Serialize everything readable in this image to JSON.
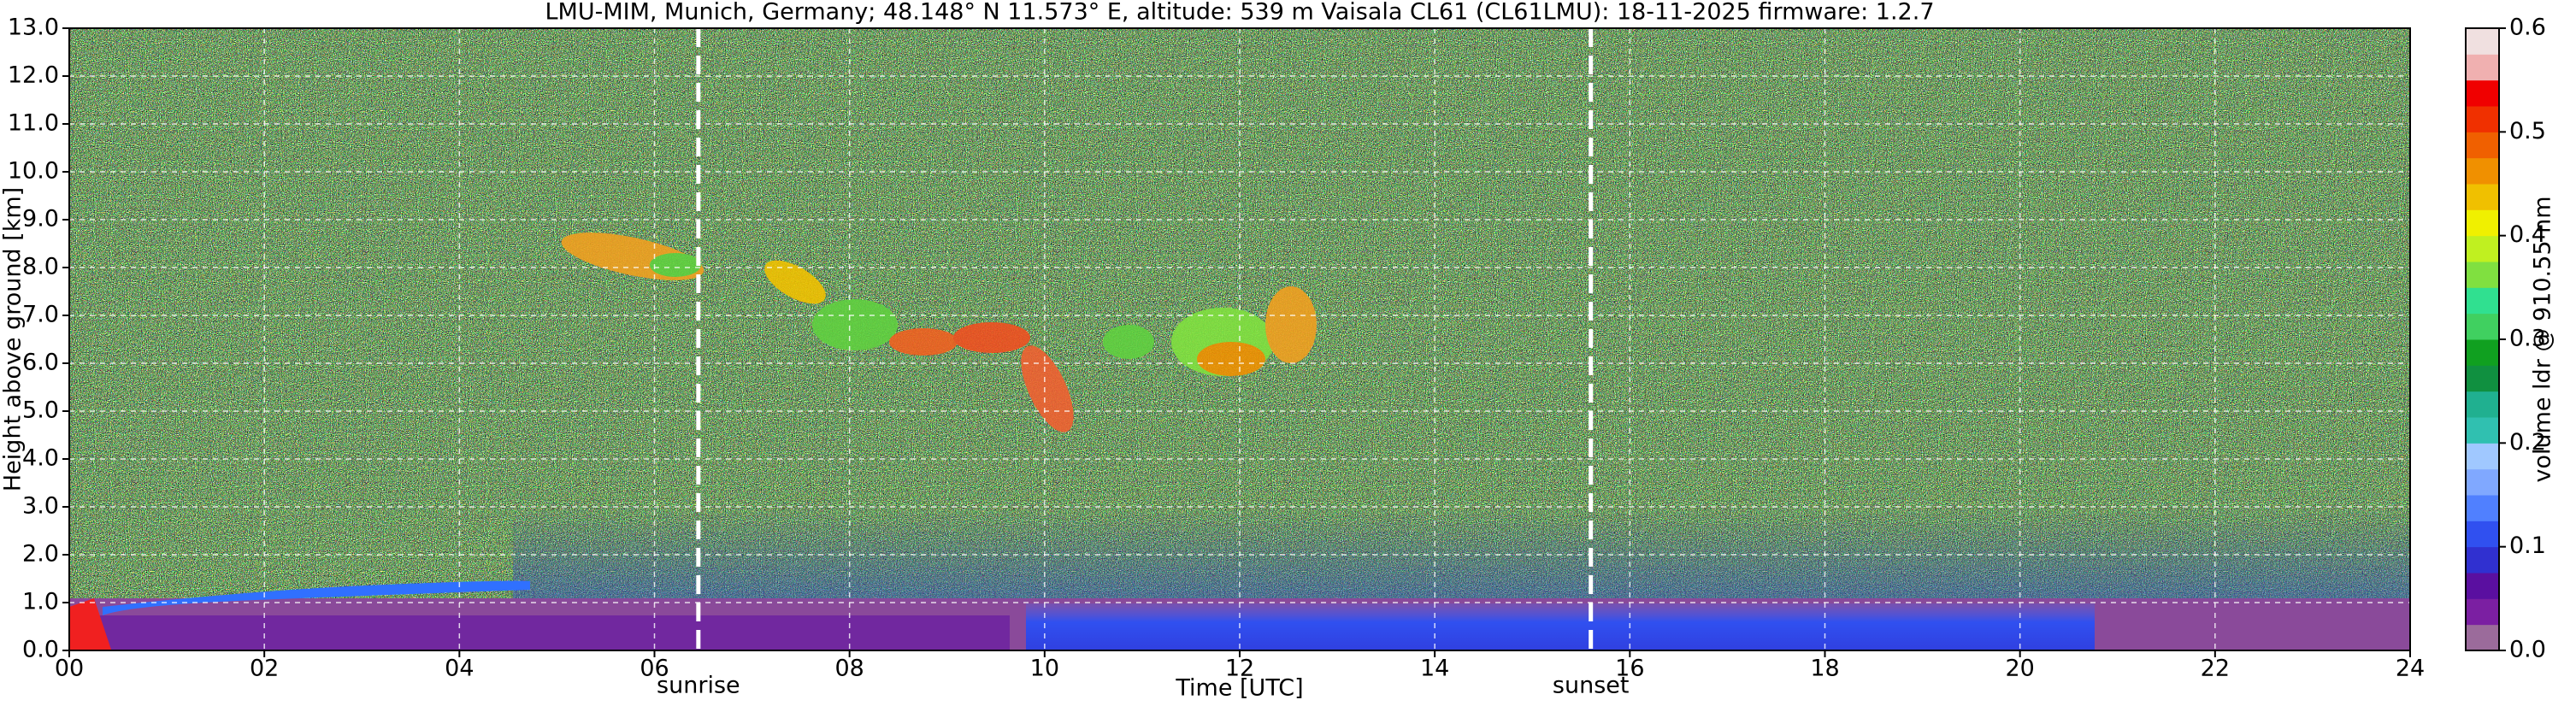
{
  "chart_data": {
    "type": "heatmap",
    "title": "LMU-MIM, Munich, Germany; 48.148° N 11.573° E, altitude: 539 m    Vaisala CL61 (CL61LMU): 18-11-2025    firmware: 1.2.7",
    "x_label": "Time [UTC]",
    "y_label": "Height above ground [km]",
    "xlim": [
      0,
      24
    ],
    "xticks": [
      {
        "value": 0,
        "label": "00"
      },
      {
        "value": 2,
        "label": "02"
      },
      {
        "value": 4,
        "label": "04"
      },
      {
        "value": 6,
        "label": "06"
      },
      {
        "value": 8,
        "label": "08"
      },
      10,
      12,
      14,
      16,
      18,
      20,
      22,
      24
    ],
    "ylim": [
      0,
      13
    ],
    "yticks": [
      {
        "value": 0,
        "label": "0.0"
      },
      {
        "value": 1,
        "label": "1.0"
      },
      {
        "value": 2,
        "label": "2.0"
      },
      {
        "value": 3,
        "label": "3.0"
      },
      {
        "value": 4,
        "label": "4.0"
      },
      {
        "value": 5,
        "label": "5.0"
      },
      {
        "value": 6,
        "label": "6.0"
      },
      {
        "value": 7,
        "label": "7.0"
      },
      {
        "value": 8,
        "label": "8.0"
      },
      {
        "value": 9,
        "label": "9.0"
      },
      {
        "value": 10,
        "label": "10.0"
      },
      {
        "value": 11,
        "label": "11.0"
      },
      {
        "value": 12,
        "label": "12.0"
      },
      {
        "value": 13,
        "label": "13.0"
      }
    ],
    "grid": true,
    "markers": [
      {
        "label": "sunrise",
        "x": 6.45
      },
      {
        "label": "sunset",
        "x": 15.6
      }
    ],
    "colorbar": {
      "label": "volume ldr @ 910.55 nm",
      "lim": [
        0,
        0.6
      ],
      "ticks": [
        {
          "value": 0,
          "label": "0.0"
        },
        0.1,
        0.2,
        0.3,
        0.4,
        0.5,
        0.6
      ],
      "colors": [
        "#9b6b9b",
        "#7b1fa2",
        "#5a0fa0",
        "#3030d0",
        "#3050f0",
        "#5080ff",
        "#80a8ff",
        "#a0c8ff",
        "#30c0b0",
        "#20b090",
        "#109040",
        "#10a020",
        "#40d060",
        "#30e090",
        "#80e040",
        "#c0f020",
        "#f0f000",
        "#f0c000",
        "#f09000",
        "#f06000",
        "#f03000",
        "#f00000",
        "#f0b0b0",
        "#f0e0e0"
      ]
    }
  }
}
